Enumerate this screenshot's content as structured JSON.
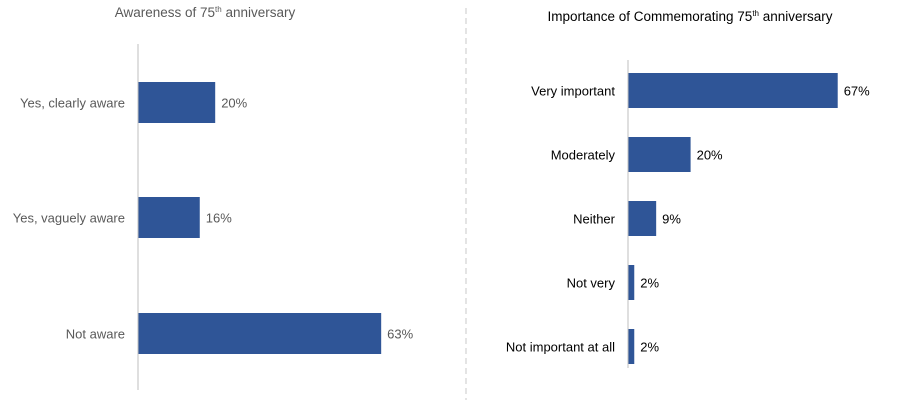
{
  "chart_data": [
    {
      "type": "bar",
      "orientation": "horizontal",
      "title": "Awareness of 75",
      "title_sup": "th",
      "title_suffix": " anniversary",
      "categories": [
        "Yes, clearly aware",
        "Yes, vaguely aware",
        "Not aware"
      ],
      "values": [
        20,
        16,
        63
      ],
      "labels": [
        "20%",
        "16%",
        "63%"
      ],
      "unit": "%",
      "grid": false,
      "bar_color": "#2F5597",
      "text_color": "#595959"
    },
    {
      "type": "bar",
      "orientation": "horizontal",
      "title": "Importance of Commemorating 75",
      "title_sup": "th",
      "title_suffix": " anniversary",
      "categories": [
        "Very important",
        "Moderately",
        "Neither",
        "Not very",
        "Not important at all"
      ],
      "values": [
        67,
        20,
        9,
        2,
        2
      ],
      "labels": [
        "67%",
        "20%",
        "9%",
        "2%",
        "2%"
      ],
      "unit": "%",
      "grid": false,
      "bar_color": "#2F5597",
      "text_color": "#000000"
    }
  ]
}
